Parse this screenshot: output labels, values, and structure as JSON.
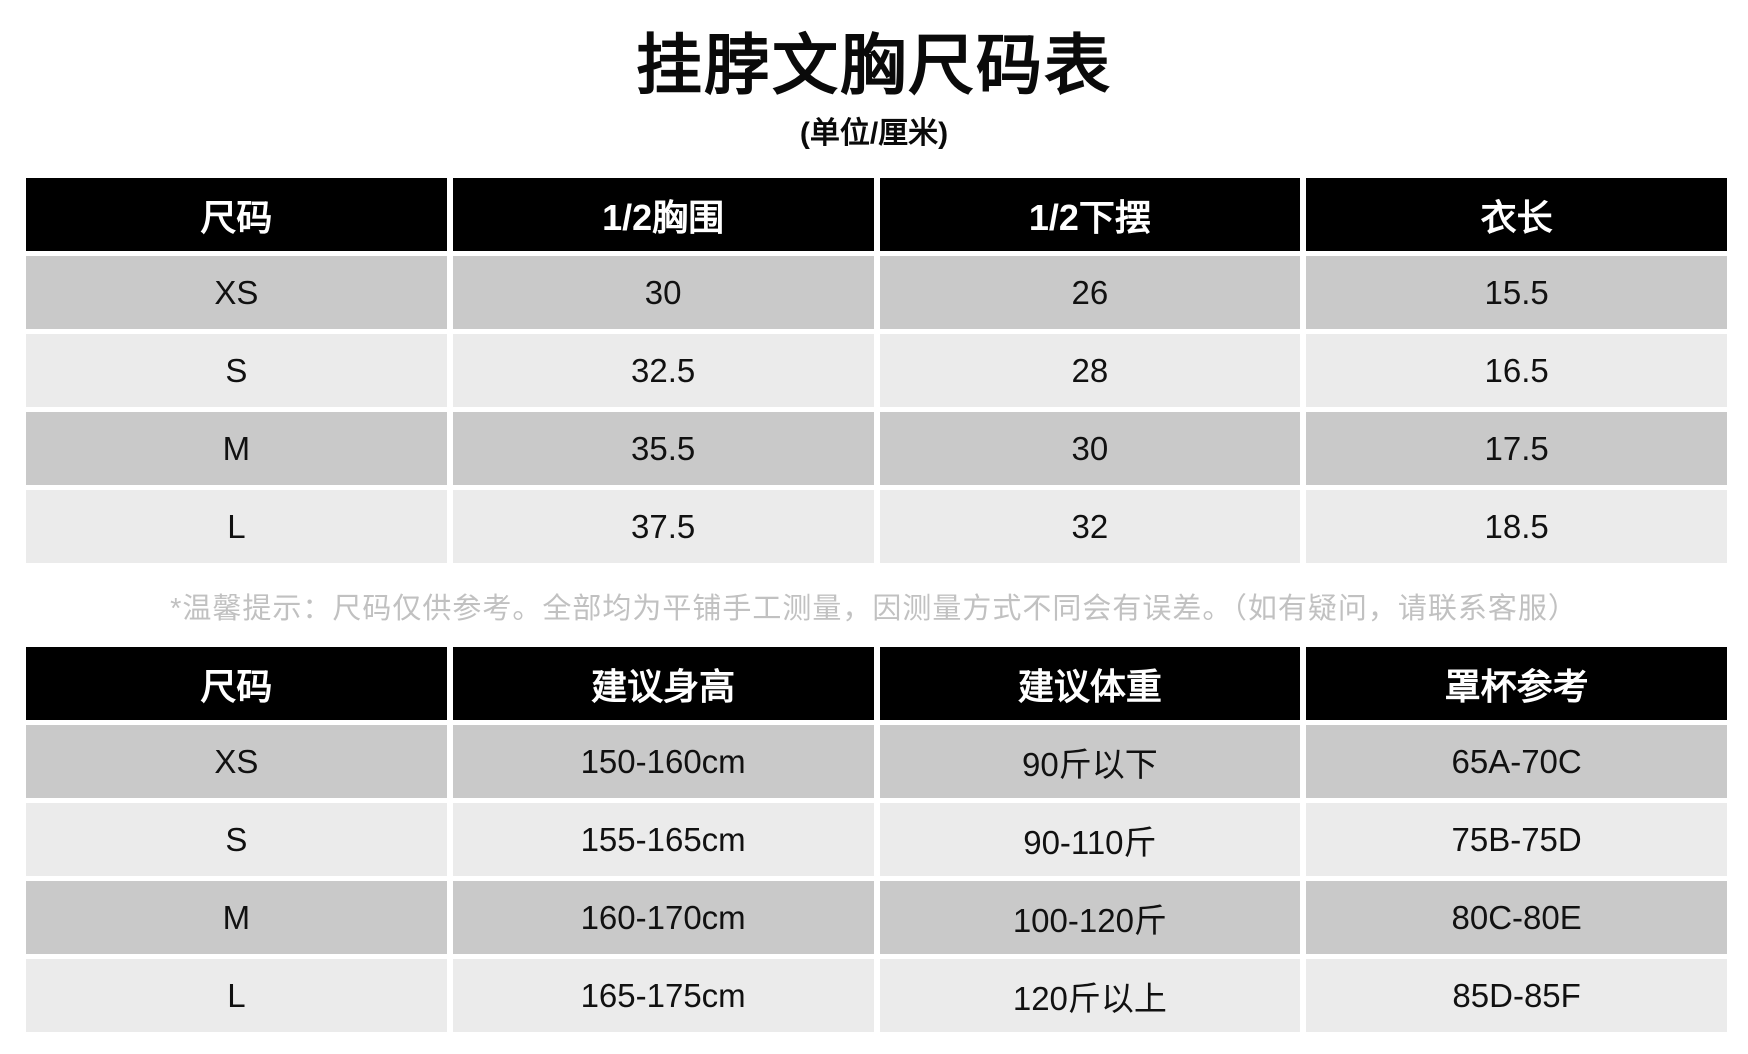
{
  "page": {
    "title": "挂脖文胸尺码表",
    "subtitle": "(单位/厘米)",
    "note": "*温馨提示：尺码仅供参考。全部均为平铺手工测量，因测量方式不同会有误差。（如有疑问，请联系客服）"
  },
  "size_table": {
    "headers": [
      "尺码",
      "1/2胸围",
      "1/2下摆",
      "衣长"
    ],
    "rows": [
      [
        "XS",
        "30",
        "26",
        "15.5"
      ],
      [
        "S",
        "32.5",
        "28",
        "16.5"
      ],
      [
        "M",
        "35.5",
        "30",
        "17.5"
      ],
      [
        "L",
        "37.5",
        "32",
        "18.5"
      ]
    ]
  },
  "fit_table": {
    "headers": [
      "尺码",
      "建议身高",
      "建议体重",
      "罩杯参考"
    ],
    "rows": [
      [
        "XS",
        "150-160cm",
        "90斤以下",
        "65A-70C"
      ],
      [
        "S",
        "155-165cm",
        "90-110斤",
        "75B-75D"
      ],
      [
        "M",
        "160-170cm",
        "100-120斤",
        "80C-80E"
      ],
      [
        "L",
        "165-175cm",
        "120斤以上",
        "85D-85F"
      ]
    ]
  },
  "colors": {
    "header_bg": "#000000",
    "header_text": "#ffffff",
    "row_dark": "#c9c9c9",
    "row_light": "#ebebeb",
    "note_text": "#c1c1c1",
    "page_bg": "#ffffff"
  }
}
